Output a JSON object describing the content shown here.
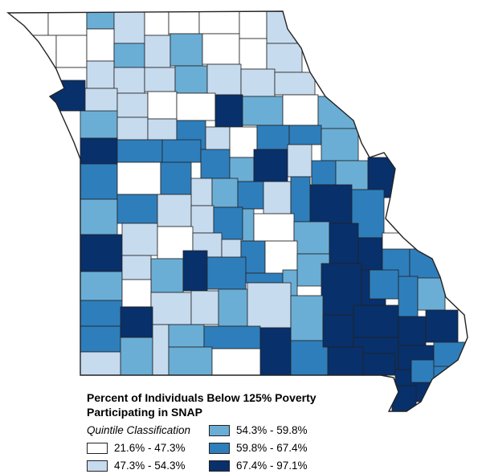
{
  "legend": {
    "title_line1": "Percent of Individuals Below 125% Poverty",
    "title_line2": "Participating in SNAP",
    "subtitle": "Quintile Classification",
    "classes": [
      {
        "label": "21.6% - 47.3%",
        "color": "#ffffff"
      },
      {
        "label": "47.3% - 54.3%",
        "color": "#c7dbef"
      },
      {
        "label": "54.3% - 59.8%",
        "color": "#6aaed6"
      },
      {
        "label": "59.8% - 67.4%",
        "color": "#2e7ebc"
      },
      {
        "label": "67.4% - 97.1%",
        "color": "#08306b"
      }
    ]
  },
  "colors": {
    "outline": "#222222",
    "background": "#ffffff"
  }
}
